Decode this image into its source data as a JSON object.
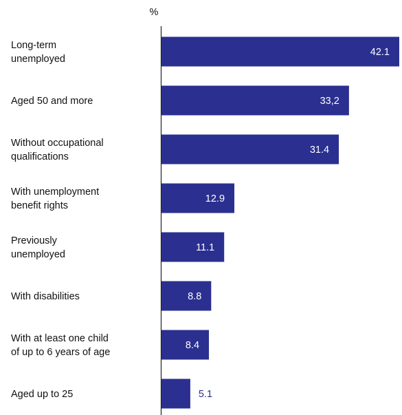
{
  "chart_data": {
    "type": "bar",
    "orientation": "horizontal",
    "unit": "%",
    "categories": [
      [
        "Long-term",
        "unemployed"
      ],
      [
        "Aged 50 and more"
      ],
      [
        "Without occupational",
        "qualifications"
      ],
      [
        "With unemployment",
        "benefit rights"
      ],
      [
        "Previously",
        "unemployed"
      ],
      [
        "With disabilities"
      ],
      [
        "With at least one child",
        "of up to 6 years of age"
      ],
      [
        "Aged up to 25"
      ]
    ],
    "values": [
      42.1,
      33.2,
      31.4,
      12.9,
      11.1,
      8.8,
      8.4,
      5.1
    ],
    "value_labels": [
      "42.1",
      "33,2",
      "31.4",
      "12.9",
      "11.1",
      "8.8",
      "8.4",
      "5.1"
    ],
    "xlim": [
      0,
      42.1
    ],
    "grid": false,
    "bar_color": "#2b2f8f",
    "inside_label_color": "#ffffff",
    "outside_label_color": "#2b2f8f"
  }
}
